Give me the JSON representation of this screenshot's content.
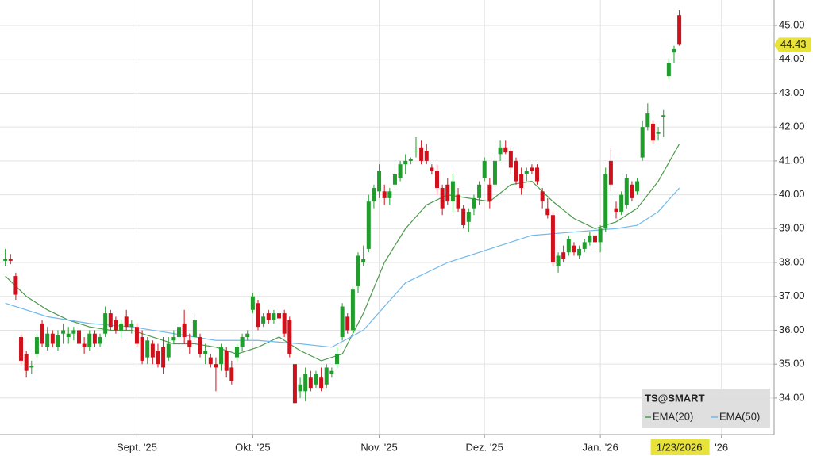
{
  "chart_data": {
    "type": "candlestick",
    "legend_title": "TS@SMART",
    "crosshair_label": "1/23/2026",
    "xlim": [
      -1,
      146
    ],
    "xticks": [
      {
        "value": 25,
        "label": "Sept. '25"
      },
      {
        "value": 47,
        "label": "Okt. '25"
      },
      {
        "value": 71,
        "label": "Nov. '25"
      },
      {
        "value": 91,
        "label": "Dez. '25"
      },
      {
        "value": 113,
        "label": "Jan. '26"
      },
      {
        "value": 136,
        "label": "'26"
      }
    ],
    "ylim": [
      32.92,
      45.75
    ],
    "yticks": [
      {
        "value": 34,
        "label": "34.00"
      },
      {
        "value": 35,
        "label": "35.00"
      },
      {
        "value": 36,
        "label": "36.00"
      },
      {
        "value": 37,
        "label": "37.00"
      },
      {
        "value": 38,
        "label": "38.00"
      },
      {
        "value": 39,
        "label": "39.00"
      },
      {
        "value": 40,
        "label": "40.00"
      },
      {
        "value": 41,
        "label": "41.00"
      },
      {
        "value": 42,
        "label": "42.00"
      },
      {
        "value": 43,
        "label": "43.00"
      },
      {
        "value": 44,
        "label": "44.00"
      },
      {
        "value": 45,
        "label": "45.00"
      }
    ],
    "grid": true,
    "up_color": "#1f9e2c",
    "down_color": "#d0101b",
    "candles": [
      [
        38.05,
        38.4,
        37.9,
        38.1
      ],
      [
        38.1,
        38.25,
        37.95,
        38.05
      ],
      [
        37.6,
        37.7,
        36.9,
        37.05
      ],
      [
        35.8,
        35.9,
        35.0,
        35.1
      ],
      [
        35.3,
        35.4,
        34.6,
        34.8
      ],
      [
        34.9,
        35.1,
        34.7,
        34.95
      ],
      [
        35.3,
        35.9,
        35.2,
        35.8
      ],
      [
        36.2,
        36.3,
        35.5,
        35.6
      ],
      [
        35.5,
        36.1,
        35.4,
        35.9
      ],
      [
        35.9,
        36.0,
        35.5,
        35.6
      ],
      [
        35.5,
        36.0,
        35.4,
        35.85
      ],
      [
        35.9,
        36.2,
        35.6,
        36.0
      ],
      [
        35.8,
        36.1,
        35.6,
        35.9
      ],
      [
        35.9,
        36.1,
        35.7,
        36.0
      ],
      [
        36.0,
        36.1,
        35.5,
        35.6
      ],
      [
        35.6,
        35.8,
        35.3,
        35.5
      ],
      [
        35.5,
        36.0,
        35.4,
        35.9
      ],
      [
        35.9,
        36.0,
        35.5,
        35.6
      ],
      [
        35.6,
        35.9,
        35.5,
        35.8
      ],
      [
        35.9,
        36.7,
        35.8,
        36.5
      ],
      [
        36.5,
        36.6,
        36.0,
        36.1
      ],
      [
        36.3,
        36.4,
        35.9,
        36.0
      ],
      [
        36.0,
        36.3,
        35.8,
        36.2
      ],
      [
        36.4,
        36.6,
        36.0,
        36.1
      ],
      [
        36.1,
        36.3,
        35.9,
        36.2
      ],
      [
        36.1,
        36.2,
        35.5,
        35.6
      ],
      [
        35.8,
        36.0,
        35.0,
        35.1
      ],
      [
        35.2,
        35.8,
        35.0,
        35.7
      ],
      [
        35.6,
        35.7,
        35.0,
        35.2
      ],
      [
        35.4,
        35.6,
        34.9,
        35.0
      ],
      [
        35.5,
        35.8,
        34.7,
        34.9
      ],
      [
        35.2,
        35.8,
        35.1,
        35.6
      ],
      [
        35.7,
        36.0,
        35.6,
        35.8
      ],
      [
        35.8,
        36.2,
        35.6,
        36.1
      ],
      [
        36.2,
        36.6,
        35.6,
        35.8
      ],
      [
        35.7,
        35.9,
        35.3,
        35.5
      ],
      [
        35.8,
        36.5,
        35.7,
        36.3
      ],
      [
        35.8,
        35.9,
        35.2,
        35.3
      ],
      [
        35.3,
        35.6,
        35.0,
        35.4
      ],
      [
        35.2,
        35.3,
        34.9,
        35.0
      ],
      [
        35.0,
        35.2,
        34.2,
        34.9
      ],
      [
        35.0,
        35.6,
        34.8,
        35.5
      ],
      [
        35.4,
        35.5,
        34.6,
        34.8
      ],
      [
        34.9,
        35.1,
        34.4,
        34.5
      ],
      [
        35.2,
        35.6,
        35.1,
        35.5
      ],
      [
        35.5,
        35.9,
        35.4,
        35.8
      ],
      [
        35.8,
        36.0,
        35.7,
        35.9
      ],
      [
        36.6,
        37.1,
        36.5,
        37.0
      ],
      [
        36.8,
        36.9,
        36.0,
        36.1
      ],
      [
        36.2,
        36.5,
        36.1,
        36.4
      ],
      [
        36.5,
        36.6,
        36.2,
        36.3
      ],
      [
        36.3,
        36.6,
        36.2,
        36.5
      ],
      [
        36.5,
        36.6,
        36.3,
        36.35
      ],
      [
        36.5,
        36.6,
        35.8,
        35.9
      ],
      [
        36.3,
        36.4,
        35.2,
        35.3
      ],
      [
        35.0,
        35.0,
        33.8,
        33.85
      ],
      [
        34.2,
        34.6,
        34.0,
        34.4
      ],
      [
        34.2,
        34.9,
        33.9,
        34.7
      ],
      [
        34.6,
        34.8,
        34.2,
        34.3
      ],
      [
        34.4,
        34.8,
        34.3,
        34.7
      ],
      [
        34.6,
        34.9,
        34.2,
        34.3
      ],
      [
        34.4,
        35.0,
        34.3,
        34.9
      ],
      [
        34.7,
        34.9,
        34.6,
        34.8
      ],
      [
        35.0,
        35.5,
        34.9,
        35.3
      ],
      [
        35.8,
        36.8,
        35.7,
        36.7
      ],
      [
        36.4,
        36.5,
        35.9,
        36.0
      ],
      [
        36.0,
        37.3,
        35.9,
        37.2
      ],
      [
        37.3,
        38.3,
        37.1,
        38.2
      ],
      [
        38.0,
        38.5,
        37.9,
        38.1
      ],
      [
        38.4,
        40.0,
        38.3,
        39.8
      ],
      [
        39.8,
        40.3,
        39.6,
        40.2
      ],
      [
        40.1,
        40.9,
        39.9,
        40.7
      ],
      [
        40.1,
        40.3,
        39.7,
        39.9
      ],
      [
        39.9,
        40.2,
        39.7,
        40.1
      ],
      [
        40.3,
        40.9,
        40.2,
        40.6
      ],
      [
        40.5,
        41.0,
        40.4,
        40.9
      ],
      [
        40.9,
        41.2,
        40.6,
        41.0
      ],
      [
        41.0,
        41.1,
        40.9,
        41.05
      ],
      [
        41.3,
        41.7,
        41.1,
        41.3
      ],
      [
        41.4,
        41.6,
        40.9,
        41.0
      ],
      [
        41.3,
        41.5,
        40.9,
        41.0
      ],
      [
        40.8,
        40.9,
        40.6,
        40.7
      ],
      [
        40.7,
        40.9,
        40.0,
        40.2
      ],
      [
        40.2,
        40.3,
        39.4,
        39.6
      ],
      [
        40.3,
        40.5,
        39.7,
        39.8
      ],
      [
        39.8,
        40.6,
        39.5,
        40.4
      ],
      [
        40.0,
        40.2,
        39.5,
        39.6
      ],
      [
        39.6,
        39.7,
        39.0,
        39.1
      ],
      [
        39.2,
        39.6,
        38.9,
        39.5
      ],
      [
        39.6,
        40.0,
        39.4,
        39.9
      ],
      [
        39.9,
        40.4,
        39.7,
        40.3
      ],
      [
        40.5,
        41.1,
        40.4,
        41.0
      ],
      [
        40.3,
        40.5,
        39.6,
        39.8
      ],
      [
        40.3,
        41.2,
        40.2,
        41.0
      ],
      [
        41.2,
        41.6,
        41.0,
        41.4
      ],
      [
        41.4,
        41.6,
        41.2,
        41.25
      ],
      [
        41.3,
        41.4,
        40.6,
        40.8
      ],
      [
        41.0,
        41.1,
        40.3,
        40.4
      ],
      [
        40.6,
        40.8,
        40.0,
        40.2
      ],
      [
        40.6,
        40.8,
        40.4,
        40.7
      ],
      [
        40.8,
        40.9,
        40.6,
        40.7
      ],
      [
        40.8,
        40.9,
        40.3,
        40.4
      ],
      [
        40.1,
        40.2,
        39.6,
        39.8
      ],
      [
        39.6,
        39.9,
        39.3,
        39.4
      ],
      [
        39.4,
        39.5,
        37.9,
        38.0
      ],
      [
        37.9,
        38.3,
        37.7,
        38.2
      ],
      [
        38.3,
        38.5,
        38.0,
        38.1
      ],
      [
        38.3,
        38.8,
        38.2,
        38.7
      ],
      [
        38.5,
        38.6,
        38.2,
        38.3
      ],
      [
        38.2,
        38.5,
        38.1,
        38.4
      ],
      [
        38.4,
        38.7,
        38.3,
        38.6
      ],
      [
        38.6,
        38.9,
        38.5,
        38.8
      ],
      [
        38.8,
        38.9,
        38.4,
        38.6
      ],
      [
        38.6,
        39.1,
        38.3,
        39.0
      ],
      [
        39.0,
        40.8,
        38.9,
        40.6
      ],
      [
        41.0,
        41.4,
        40.1,
        40.3
      ],
      [
        39.6,
        39.8,
        39.3,
        39.5
      ],
      [
        39.5,
        40.1,
        39.4,
        40.0
      ],
      [
        39.7,
        40.6,
        39.6,
        40.5
      ],
      [
        40.3,
        40.4,
        39.8,
        39.9
      ],
      [
        40.1,
        40.5,
        40.0,
        40.4
      ],
      [
        41.1,
        42.2,
        41.0,
        42.0
      ],
      [
        42.0,
        42.7,
        41.9,
        42.4
      ],
      [
        42.1,
        42.2,
        41.5,
        41.6
      ],
      [
        41.8,
        42.0,
        41.6,
        41.85
      ],
      [
        42.3,
        42.5,
        41.7,
        42.35
      ],
      [
        43.5,
        44.0,
        43.4,
        43.9
      ],
      [
        44.2,
        44.4,
        43.9,
        44.3
      ],
      [
        45.3,
        45.45,
        44.4,
        44.43
      ]
    ],
    "series": [
      {
        "name": "EMA(20)",
        "color": "#4e9a4e",
        "x": [
          0,
          4,
          8,
          12,
          16,
          20,
          24,
          28,
          32,
          36,
          40,
          44,
          48,
          52,
          56,
          60,
          64,
          68,
          72,
          76,
          80,
          84,
          88,
          92,
          96,
          100,
          104,
          108,
          112,
          116,
          120,
          124,
          128
        ],
        "values": [
          37.6,
          37.0,
          36.6,
          36.3,
          36.1,
          36.0,
          36.0,
          35.8,
          35.6,
          35.6,
          35.5,
          35.3,
          35.5,
          35.8,
          35.4,
          35.1,
          35.3,
          36.5,
          38.0,
          39.0,
          39.7,
          40.0,
          39.9,
          39.8,
          40.3,
          40.4,
          39.8,
          39.3,
          39.0,
          39.2,
          39.6,
          40.4,
          41.5
        ]
      },
      {
        "name": "EMA(50)",
        "color": "#6fb9ee",
        "x": [
          0,
          8,
          16,
          24,
          32,
          40,
          48,
          56,
          62,
          68,
          76,
          84,
          92,
          100,
          108,
          116,
          120,
          124,
          128
        ],
        "values": [
          36.8,
          36.4,
          36.2,
          36.1,
          35.9,
          35.7,
          35.7,
          35.6,
          35.5,
          36.0,
          37.4,
          38.0,
          38.4,
          38.8,
          38.9,
          39.0,
          39.1,
          39.5,
          40.2
        ]
      }
    ]
  }
}
